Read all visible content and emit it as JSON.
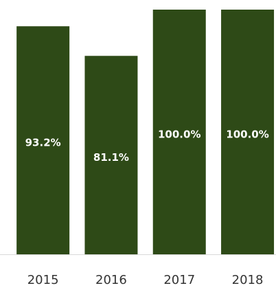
{
  "chart_data": {
    "type": "bar",
    "categories": [
      "2015",
      "2016",
      "2017",
      "2018"
    ],
    "values": [
      93.2,
      81.1,
      100.0,
      100.0
    ],
    "value_labels": [
      "93.2%",
      "81.1%",
      "100.0%",
      "100.0%"
    ],
    "color": "#2e4a17",
    "ylim": [
      0,
      100
    ]
  }
}
